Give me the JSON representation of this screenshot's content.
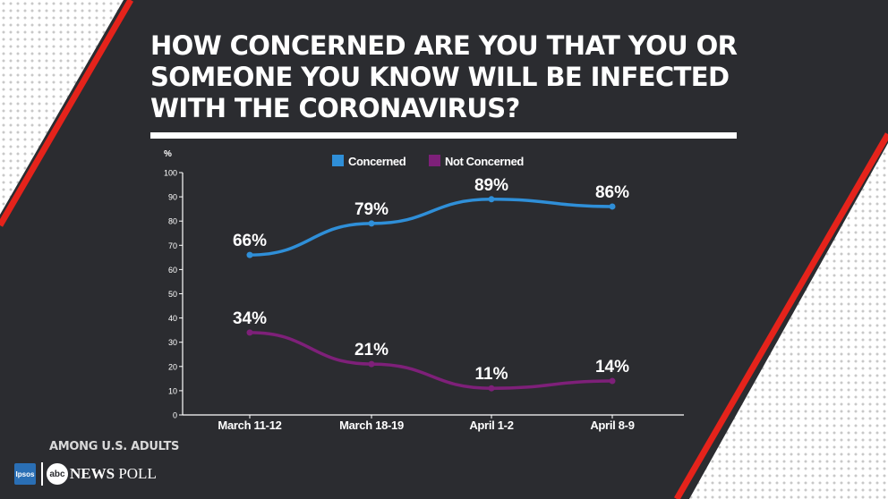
{
  "title_lines": [
    "HOW CONCERNED ARE YOU THAT YOU OR",
    "SOMEONE YOU KNOW WILL BE INFECTED",
    "WITH THE CORONAVIRUS?"
  ],
  "footer": {
    "note": "AMONG U.S. ADULTS",
    "ipsos_logo": "Ipsos",
    "abc_logo": "abc",
    "brand_news": "NEWS",
    "brand_poll": " POLL"
  },
  "colors": {
    "background": "#2b2c30",
    "accent_red": "#e5231b",
    "concerned": "#2f8fd8",
    "not_concerned": "#7e2079"
  },
  "chart_data": {
    "type": "line",
    "ylabel": "%",
    "ylim": [
      0,
      100
    ],
    "yticks": [
      0,
      10,
      20,
      30,
      40,
      50,
      60,
      70,
      80,
      90,
      100
    ],
    "categories": [
      "March 11-12",
      "March 18-19",
      "April 1-2",
      "April 8-9"
    ],
    "legend_position": "top",
    "grid": false,
    "series": [
      {
        "name": "Concerned",
        "color": "#2f8fd8",
        "values": [
          66,
          79,
          89,
          86
        ],
        "labels": [
          "66%",
          "79%",
          "89%",
          "86%"
        ]
      },
      {
        "name": "Not Concerned",
        "color": "#7e2079",
        "values": [
          34,
          21,
          11,
          14
        ],
        "labels": [
          "34%",
          "21%",
          "11%",
          "14%"
        ]
      }
    ]
  }
}
